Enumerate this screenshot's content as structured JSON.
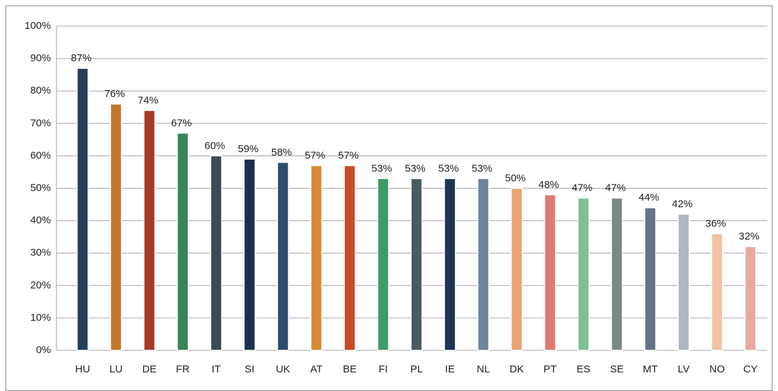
{
  "chart_data": {
    "type": "bar",
    "categories": [
      "HU",
      "LU",
      "DE",
      "FR",
      "IT",
      "SI",
      "UK",
      "AT",
      "BE",
      "FI",
      "PL",
      "IE",
      "NL",
      "DK",
      "PT",
      "ES",
      "SE",
      "MT",
      "LV",
      "NO",
      "CY"
    ],
    "values": [
      87,
      76,
      74,
      67,
      60,
      59,
      58,
      57,
      57,
      53,
      53,
      53,
      53,
      50,
      48,
      47,
      47,
      44,
      42,
      36,
      32
    ],
    "value_labels": [
      "87%",
      "76%",
      "74%",
      "67%",
      "60%",
      "59%",
      "58%",
      "57%",
      "57%",
      "53%",
      "53%",
      "53%",
      "53%",
      "50%",
      "48%",
      "47%",
      "47%",
      "44%",
      "42%",
      "36%",
      "32%"
    ],
    "colors": [
      "#243f5c",
      "#c0782f",
      "#a63c23",
      "#36845a",
      "#3c4a52",
      "#1b2f4f",
      "#2d4d6e",
      "#d98b36",
      "#c8492a",
      "#3f9a6a",
      "#4a5a64",
      "#1f3553",
      "#6f8499",
      "#eaa373",
      "#e07a70",
      "#7fbf94",
      "#7a8888",
      "#66728a",
      "#afb7c2",
      "#f2c2a4",
      "#e6aaa2"
    ],
    "ylim": [
      0,
      100
    ],
    "yticks": [
      {
        "value": 0,
        "label": "0%"
      },
      {
        "value": 10,
        "label": "10%"
      },
      {
        "value": 20,
        "label": "20%"
      },
      {
        "value": 30,
        "label": "30%"
      },
      {
        "value": 40,
        "label": "40%"
      },
      {
        "value": 50,
        "label": "50%"
      },
      {
        "value": 60,
        "label": "60%"
      },
      {
        "value": 70,
        "label": "70%"
      },
      {
        "value": 80,
        "label": "80%"
      },
      {
        "value": 90,
        "label": "90%"
      },
      {
        "value": 100,
        "label": "100%"
      }
    ],
    "grid": true
  }
}
